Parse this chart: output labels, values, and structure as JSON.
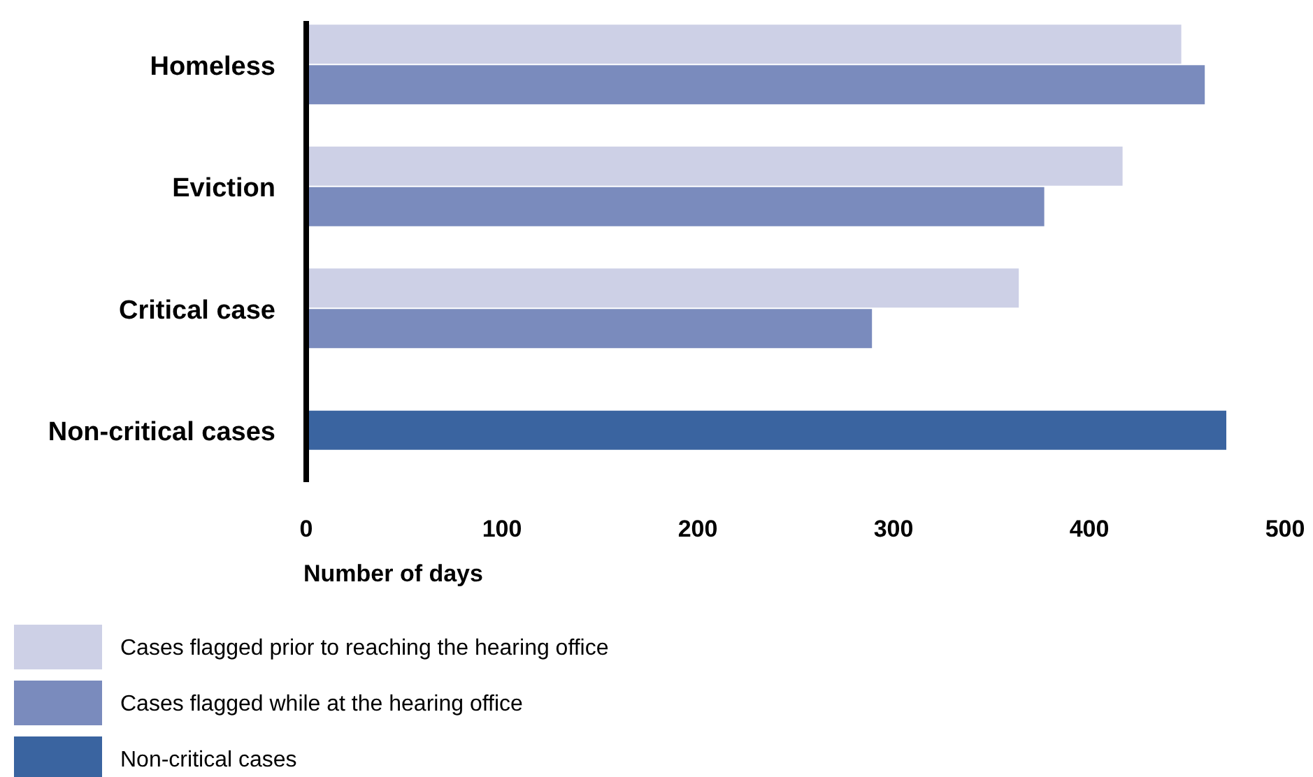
{
  "chart_data": {
    "type": "bar",
    "orientation": "horizontal",
    "xlabel": "Number of days",
    "categories": [
      "Homeless",
      "Eviction",
      "Critical case",
      "Non-critical cases"
    ],
    "series": [
      {
        "name": "Cases flagged prior to reaching the hearing office",
        "color": "#cdd0e6",
        "values": [
          447,
          417,
          364,
          null
        ]
      },
      {
        "name": "Cases flagged while at the hearing office",
        "color": "#7a8bbd",
        "values": [
          459,
          377,
          289,
          null
        ]
      },
      {
        "name": "Non-critical cases",
        "color": "#3a64a0",
        "values": [
          null,
          null,
          null,
          470
        ]
      }
    ],
    "xlim": [
      0,
      500
    ],
    "xticks": [
      0,
      100,
      200,
      300,
      400,
      500
    ],
    "grid": false,
    "legend": "bottom left"
  }
}
